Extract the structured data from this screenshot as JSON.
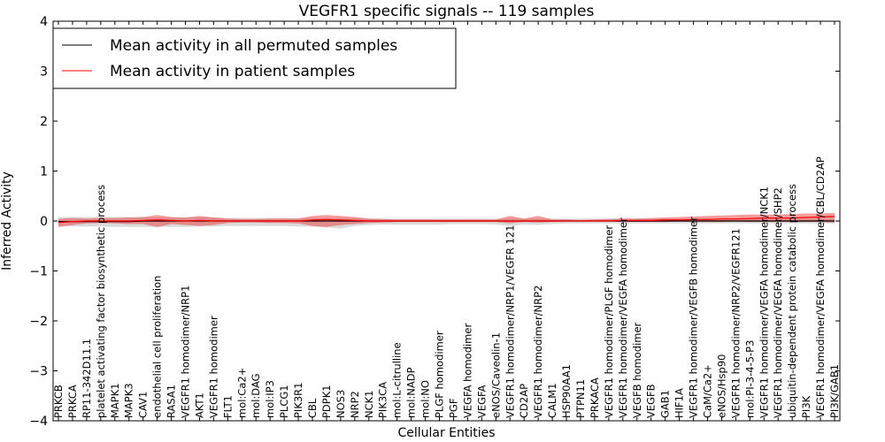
{
  "chart_data": {
    "type": "line",
    "title": "VEGFR1 specific signals -- 119 samples",
    "xlabel": "Cellular Entities",
    "ylabel": "Inferred Activity",
    "ylim": [
      -4,
      4
    ],
    "yticks": [
      "−4",
      "−3",
      "−2",
      "−1",
      "0",
      "1",
      "2",
      "3",
      "4"
    ],
    "grid": false,
    "legend_position": "top-left",
    "categories": [
      "PRKCB",
      "PRKCA",
      "RP11-342D11.1",
      "platelet activating factor biosynthetic process",
      "MAPK1",
      "MAPK3",
      "CAV1",
      "endothelial cell proliferation",
      "RASA1",
      "VEGFR1 homodimer/NRP1",
      "AKT1",
      "VEGFR1 homodimer",
      "FLT1",
      "mol:Ca2+",
      "mol:DAG",
      "mol:IP3",
      "PLCG1",
      "PIK3R1",
      "CBL",
      "PDPK1",
      "NOS3",
      "NRP2",
      "NCK1",
      "PIK3CA",
      "mol:L-citrulline",
      "mol:NADP",
      "mol:NO",
      "PLGF homodimer",
      "PGF",
      "VEGFA homodimer",
      "VEGFA",
      "eNOS/Caveolin-1",
      "VEGFR1 homodimer/NRP1/VEGFR 121",
      "CD2AP",
      "VEGFR1 homodimer/NRP2",
      "CALM1",
      "HSP90AA1",
      "PTPN11",
      "PRKACA",
      "VEGFR1 homodimer/PLGF homodimer",
      "VEGFR1 homodimer/VEGFA homodimer",
      "VEGFB homodimer",
      "VEGFB",
      "GAB1",
      "HIF1A",
      "VEGFR1 homodimer/VEGFB homodimer",
      "CaM/Ca2+",
      "eNOS/Hsp90",
      "VEGFR1 homodimer/NRP2/VEGFR121",
      "mol:PI-3-4-5-P3",
      "VEGFR1 homodimer/VEGFA homodimer/NCK1",
      "VEGFR1 homodimer/VEGFA homodimer/SHP2",
      "ubiquitin-dependent protein catabolic process",
      "PI3K",
      "VEGFR1 homodimer/VEGFA homodimer/CBL/CD2AP",
      "PI3K/GAB1"
    ],
    "series": [
      {
        "name": "Mean activity in all permuted samples",
        "color": "#000000",
        "values": [
          -0.01,
          -0.01,
          -0.01,
          -0.01,
          -0.01,
          -0.01,
          0,
          0,
          0,
          0,
          0,
          0,
          0,
          0,
          0,
          0,
          0,
          0,
          0,
          0,
          0,
          0,
          0,
          0,
          0,
          0,
          0,
          0,
          0,
          0,
          0,
          0,
          0,
          0,
          0,
          0,
          0,
          0,
          0,
          0,
          0,
          0,
          0,
          0,
          0,
          0,
          0,
          0,
          0,
          0,
          0,
          0,
          0,
          0,
          0,
          0
        ],
        "band_upper": [
          0.08,
          0.08,
          0.08,
          0.08,
          0.08,
          0.08,
          0.07,
          0.07,
          0.07,
          0.07,
          0.07,
          0.07,
          0.06,
          0.06,
          0.06,
          0.06,
          0.06,
          0.06,
          0.06,
          0.06,
          0.06,
          0.06,
          0.05,
          0.05,
          0.05,
          0.05,
          0.05,
          0.05,
          0.05,
          0.05,
          0.05,
          0.05,
          0.05,
          0.05,
          0.05,
          0.05,
          0.05,
          0.05,
          0.05,
          0.05,
          0.05,
          0.05,
          0.05,
          0.05,
          0.05,
          0.05,
          0.05,
          0.05,
          0.05,
          0.05,
          0.05,
          0.05,
          0.05,
          0.05,
          0.05,
          0.05
        ],
        "band_lower": [
          -0.1,
          -0.11,
          -0.11,
          -0.11,
          -0.12,
          -0.12,
          -0.12,
          -0.12,
          -0.12,
          -0.12,
          -0.11,
          -0.11,
          -0.1,
          -0.1,
          -0.1,
          -0.1,
          -0.1,
          -0.11,
          -0.11,
          -0.13,
          -0.15,
          -0.1,
          -0.08,
          -0.07,
          -0.07,
          -0.07,
          -0.07,
          -0.07,
          -0.06,
          -0.06,
          -0.06,
          -0.07,
          -0.1,
          -0.07,
          -0.08,
          -0.06,
          -0.05,
          -0.05,
          -0.05,
          -0.05,
          -0.05,
          -0.05,
          -0.05,
          -0.05,
          -0.05,
          -0.05,
          -0.05,
          -0.05,
          -0.05,
          -0.05,
          -0.05,
          -0.05,
          -0.05,
          -0.05,
          -0.05,
          -0.05
        ]
      },
      {
        "name": "Mean activity in patient samples",
        "color": "#ff0000",
        "values": [
          -0.03,
          -0.01,
          0,
          0,
          0,
          0,
          0.01,
          0.02,
          0.01,
          0,
          0.01,
          0,
          0,
          0,
          0,
          0,
          0,
          0,
          0.02,
          0.03,
          0.02,
          0.01,
          0,
          0,
          0,
          0,
          0,
          0,
          0,
          0,
          0,
          0,
          0,
          0,
          0,
          0,
          0,
          0,
          0,
          0,
          0.01,
          0.01,
          0.01,
          0.02,
          0.02,
          0.03,
          0.03,
          0.04,
          0.04,
          0.05,
          0.06,
          0.06,
          0.06,
          0.07,
          0.08,
          0.09
        ],
        "band_upper": [
          0.04,
          0.06,
          0.05,
          0.06,
          0.06,
          0.07,
          0.08,
          0.12,
          0.08,
          0.07,
          0.1,
          0.07,
          0.05,
          0.04,
          0.04,
          0.05,
          0.05,
          0.05,
          0.1,
          0.12,
          0.1,
          0.08,
          0.05,
          0.04,
          0.03,
          0.03,
          0.03,
          0.03,
          0.03,
          0.03,
          0.03,
          0.03,
          0.1,
          0.05,
          0.1,
          0.03,
          0.03,
          0.02,
          0.03,
          0.04,
          0.05,
          0.05,
          0.06,
          0.07,
          0.08,
          0.09,
          0.1,
          0.11,
          0.12,
          0.13,
          0.13,
          0.13,
          0.14,
          0.15,
          0.15,
          0.16
        ],
        "band_lower": [
          -0.12,
          -0.08,
          -0.05,
          -0.04,
          -0.05,
          -0.06,
          -0.06,
          -0.12,
          -0.06,
          -0.08,
          -0.1,
          -0.08,
          -0.04,
          -0.03,
          -0.03,
          -0.04,
          -0.04,
          -0.05,
          -0.1,
          -0.12,
          -0.08,
          -0.06,
          -0.04,
          -0.03,
          -0.02,
          -0.02,
          -0.02,
          -0.02,
          -0.02,
          -0.02,
          -0.02,
          -0.02,
          -0.05,
          -0.02,
          -0.03,
          -0.02,
          -0.01,
          -0.01,
          -0.01,
          -0.01,
          -0.02,
          -0.02,
          -0.02,
          -0.02,
          -0.01,
          -0.02,
          -0.02,
          -0.02,
          -0.01,
          -0.02,
          -0.02,
          -0.02,
          -0.02,
          -0.02,
          -0.02,
          -0.03
        ]
      }
    ]
  }
}
